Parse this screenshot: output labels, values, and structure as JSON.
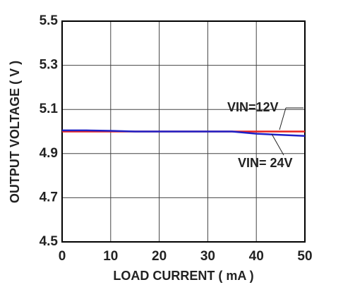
{
  "chart_data": {
    "type": "line",
    "xlabel": "LOAD CURRENT ( mA )",
    "ylabel": "OUTPUT VOLTAGE ( V )",
    "xlim": [
      0,
      50
    ],
    "xticks": [
      0,
      10,
      20,
      30,
      40,
      50
    ],
    "ylim": [
      4.5,
      5.5
    ],
    "yticks": [
      4.5,
      4.7,
      4.9,
      5.1,
      5.3,
      5.5
    ],
    "grid": true,
    "series": [
      {
        "name": "VIN=12V",
        "color": "#e8211f",
        "x": [
          0,
          10,
          20,
          30,
          40,
          50
        ],
        "values": [
          5.0,
          5.0,
          5.0,
          5.0,
          5.0,
          5.0
        ]
      },
      {
        "name": "VIN= 24V",
        "color": "#1f22c8",
        "x": [
          0,
          5,
          10,
          15,
          20,
          30,
          35,
          40,
          45,
          50
        ],
        "values": [
          5.005,
          5.005,
          5.003,
          5.0,
          5.0,
          5.0,
          5.0,
          4.99,
          4.985,
          4.98
        ]
      }
    ]
  }
}
